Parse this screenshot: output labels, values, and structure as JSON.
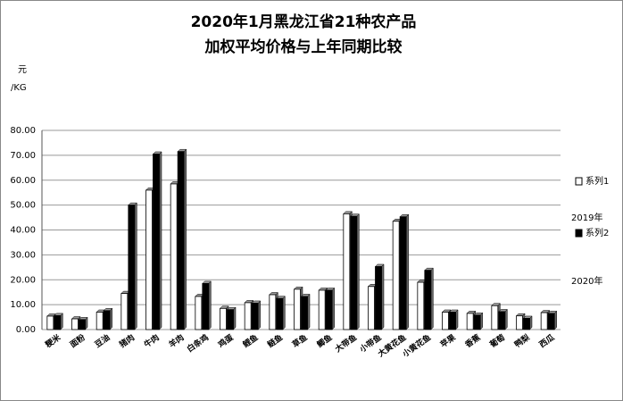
{
  "chart_data": {
    "type": "bar",
    "title_lines": [
      "2020年1月黑龙江省21种农产品",
      "加权平均价格与上年同期比较"
    ],
    "y_label_lines": [
      "元",
      "/KG"
    ],
    "annotations": [
      "2019年",
      "2020年"
    ],
    "categories": [
      "粳米",
      "面粉",
      "豆油",
      "猪肉",
      "牛肉",
      "羊肉",
      "白条鸡",
      "鸡蛋",
      "鲤鱼",
      "鲢鱼",
      "草鱼",
      "鲫鱼",
      "大带鱼",
      "小带鱼",
      "大黄花鱼",
      "小黄花鱼",
      "苹果",
      "香蕉",
      "葡萄",
      "鸭梨",
      "西瓜"
    ],
    "series": [
      {
        "name": "系列1",
        "color": "#ffffff",
        "values": [
          5.4,
          4.3,
          7.0,
          14.5,
          56.0,
          58.5,
          13.3,
          8.5,
          10.8,
          14.0,
          16.2,
          15.8,
          46.5,
          17.3,
          43.5,
          19.0,
          7.0,
          6.5,
          9.6,
          5.5,
          6.8
        ]
      },
      {
        "name": "系列2",
        "color": "#000000",
        "values": [
          5.6,
          4.0,
          7.6,
          50.0,
          70.5,
          71.5,
          18.5,
          8.0,
          10.6,
          12.5,
          13.3,
          15.8,
          45.5,
          25.3,
          45.3,
          23.8,
          7.0,
          5.8,
          7.2,
          4.5,
          6.5
        ]
      }
    ],
    "ylim": [
      0,
      80
    ],
    "yticks": [
      {
        "value": 0,
        "label": "0.00"
      },
      {
        "value": 10,
        "label": "10.00"
      },
      {
        "value": 20,
        "label": "20.00"
      },
      {
        "value": 30,
        "label": "30.00"
      },
      {
        "value": 40,
        "label": "40.00"
      },
      {
        "value": 50,
        "label": "50.00"
      },
      {
        "value": 60,
        "label": "60.00"
      },
      {
        "value": 70,
        "label": "70.00"
      },
      {
        "value": 80,
        "label": "80.00"
      }
    ],
    "grid": true
  }
}
